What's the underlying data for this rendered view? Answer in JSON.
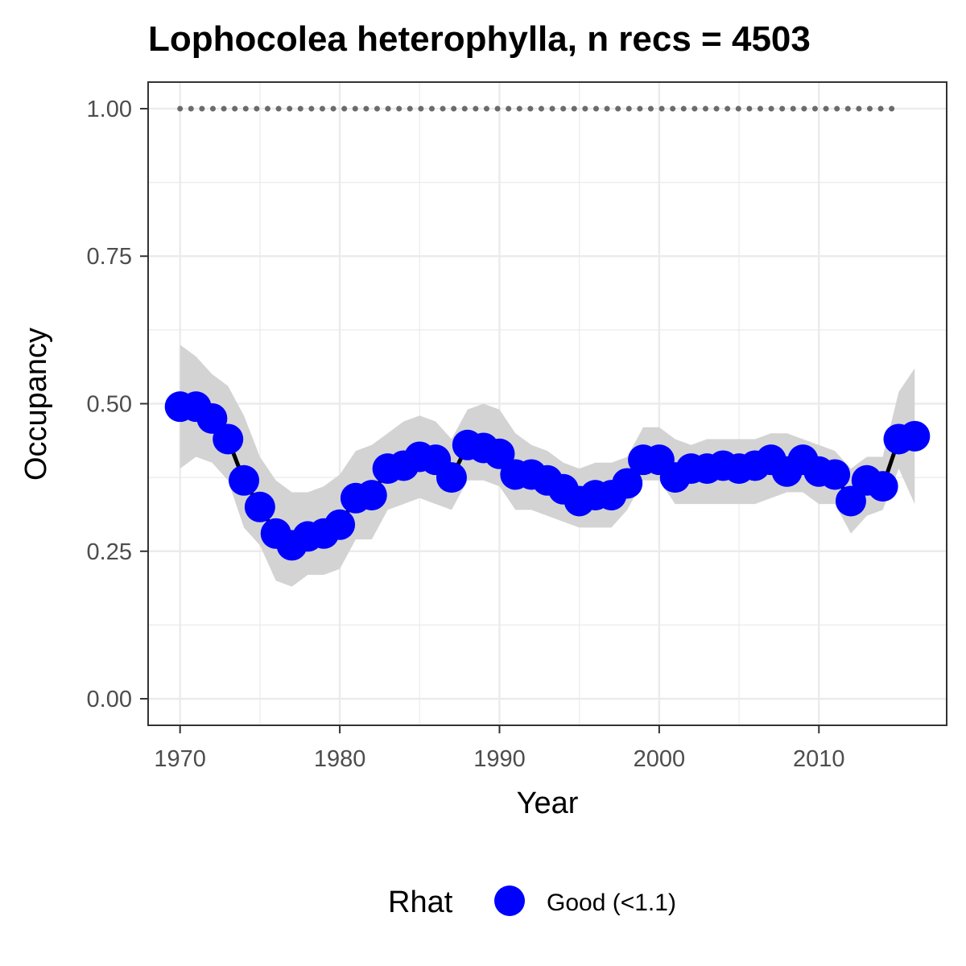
{
  "chart_data": {
    "type": "line",
    "title": "Lophocolea heterophylla, n recs = 4503",
    "xlabel": "Year",
    "ylabel": "Occupancy",
    "xlim": [
      1968,
      2018
    ],
    "ylim": [
      -0.045,
      1.045
    ],
    "x_ticks": [
      1970,
      1980,
      1990,
      2000,
      2010
    ],
    "x_tick_labels": [
      "1970",
      "1980",
      "1990",
      "2000",
      "2010"
    ],
    "y_ticks": [
      0,
      0.25,
      0.5,
      0.75,
      1.0
    ],
    "y_tick_labels": [
      "0.00",
      "0.25",
      "0.50",
      "0.75",
      "1.00"
    ],
    "grid": true,
    "legend": {
      "title": "Rhat",
      "placement": "bottom",
      "entries": [
        {
          "label": "Good (<1.1)",
          "color": "#0000ff"
        }
      ]
    },
    "series": [
      {
        "type": "dotted-line",
        "color": "#6b6b6b",
        "x": [
          1970,
          2015
        ],
        "values": [
          1.0,
          1.0
        ]
      },
      {
        "type": "ribbon",
        "color": "#d3d3d3",
        "x": [
          1970,
          1971,
          1972,
          1973,
          1974,
          1975,
          1976,
          1977,
          1978,
          1979,
          1980,
          1981,
          1982,
          1983,
          1984,
          1985,
          1986,
          1987,
          1988,
          1989,
          1990,
          1991,
          1992,
          1993,
          1994,
          1995,
          1996,
          1997,
          1998,
          1999,
          2000,
          2001,
          2002,
          2003,
          2004,
          2005,
          2006,
          2007,
          2008,
          2009,
          2010,
          2011,
          2012,
          2013,
          2014,
          2015,
          2016
        ],
        "lower": [
          0.39,
          0.41,
          0.4,
          0.37,
          0.29,
          0.26,
          0.2,
          0.19,
          0.21,
          0.21,
          0.22,
          0.27,
          0.27,
          0.32,
          0.33,
          0.34,
          0.33,
          0.32,
          0.37,
          0.37,
          0.36,
          0.32,
          0.32,
          0.31,
          0.3,
          0.29,
          0.29,
          0.29,
          0.32,
          0.37,
          0.37,
          0.33,
          0.33,
          0.33,
          0.33,
          0.33,
          0.33,
          0.34,
          0.35,
          0.35,
          0.33,
          0.33,
          0.28,
          0.31,
          0.32,
          0.39,
          0.33
        ],
        "upper": [
          0.6,
          0.58,
          0.55,
          0.53,
          0.48,
          0.41,
          0.37,
          0.35,
          0.35,
          0.36,
          0.38,
          0.42,
          0.43,
          0.45,
          0.47,
          0.48,
          0.47,
          0.44,
          0.49,
          0.5,
          0.49,
          0.45,
          0.43,
          0.42,
          0.4,
          0.39,
          0.4,
          0.4,
          0.41,
          0.46,
          0.46,
          0.44,
          0.43,
          0.44,
          0.44,
          0.44,
          0.44,
          0.45,
          0.45,
          0.44,
          0.43,
          0.42,
          0.39,
          0.41,
          0.41,
          0.52,
          0.56
        ]
      },
      {
        "type": "line-points",
        "name": "Good (<1.1)",
        "line_color": "#000000",
        "point_color": "#0000ff",
        "x": [
          1970,
          1971,
          1972,
          1973,
          1974,
          1975,
          1976,
          1977,
          1978,
          1979,
          1980,
          1981,
          1982,
          1983,
          1984,
          1985,
          1986,
          1987,
          1988,
          1989,
          1990,
          1991,
          1992,
          1993,
          1994,
          1995,
          1996,
          1997,
          1998,
          1999,
          2000,
          2001,
          2002,
          2003,
          2004,
          2005,
          2006,
          2007,
          2008,
          2009,
          2010,
          2011,
          2012,
          2013,
          2014,
          2015,
          2016
        ],
        "values": [
          0.495,
          0.495,
          0.475,
          0.44,
          0.37,
          0.325,
          0.28,
          0.26,
          0.275,
          0.28,
          0.295,
          0.34,
          0.345,
          0.39,
          0.395,
          0.41,
          0.405,
          0.375,
          0.43,
          0.425,
          0.415,
          0.38,
          0.38,
          0.37,
          0.355,
          0.335,
          0.345,
          0.345,
          0.365,
          0.405,
          0.405,
          0.375,
          0.39,
          0.39,
          0.395,
          0.39,
          0.395,
          0.405,
          0.385,
          0.405,
          0.385,
          0.38,
          0.335,
          0.37,
          0.36,
          0.44,
          0.445
        ]
      }
    ]
  }
}
